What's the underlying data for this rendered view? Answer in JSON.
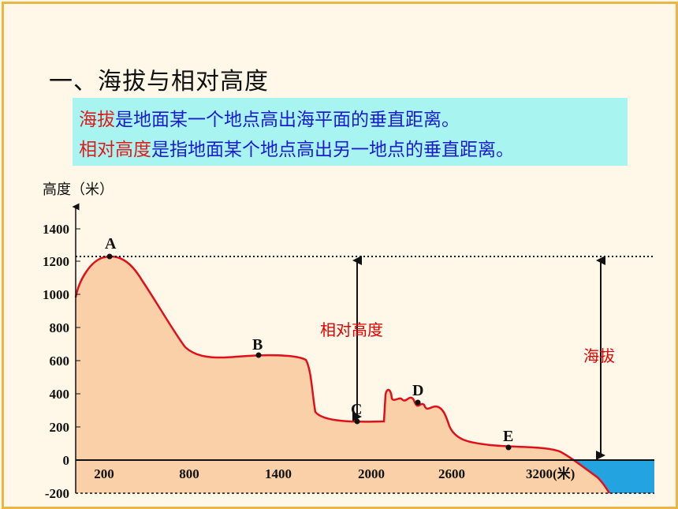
{
  "title": "一、海拔与相对高度",
  "definitions": {
    "line1_term": "海拔",
    "line1_rest": "是地面某一个地点高出海平面的垂直距离。",
    "line2_term": "相对高度",
    "line2_rest": "是指地面某个地点高出另一地点的垂直距离。"
  },
  "diagram": {
    "y_axis_title": "高度（米）",
    "y_ticks": [
      "1400",
      "1200",
      "1000",
      "800",
      "600",
      "400",
      "200",
      "0",
      "-200"
    ],
    "x_ticks": [
      "200",
      "800",
      "1400",
      "2000",
      "2600",
      "3200(米)"
    ],
    "points": [
      {
        "label": "A",
        "elevation": 1230
      },
      {
        "label": "B",
        "elevation": 630
      },
      {
        "label": "C",
        "elevation": 230
      },
      {
        "label": "D",
        "elevation": 350
      },
      {
        "label": "E",
        "elevation": 70
      }
    ],
    "relative_height_label": "相对高度",
    "altitude_label": "海拔",
    "colors": {
      "land_fill": "#f9d0a8",
      "profile_line": "#e0101a",
      "sea": "#23a3e0",
      "label_red": "#e00000",
      "definition_term": "#e11b1b",
      "definition_text": "#1b1bd0",
      "definition_bg": "#a8f4f1"
    }
  }
}
